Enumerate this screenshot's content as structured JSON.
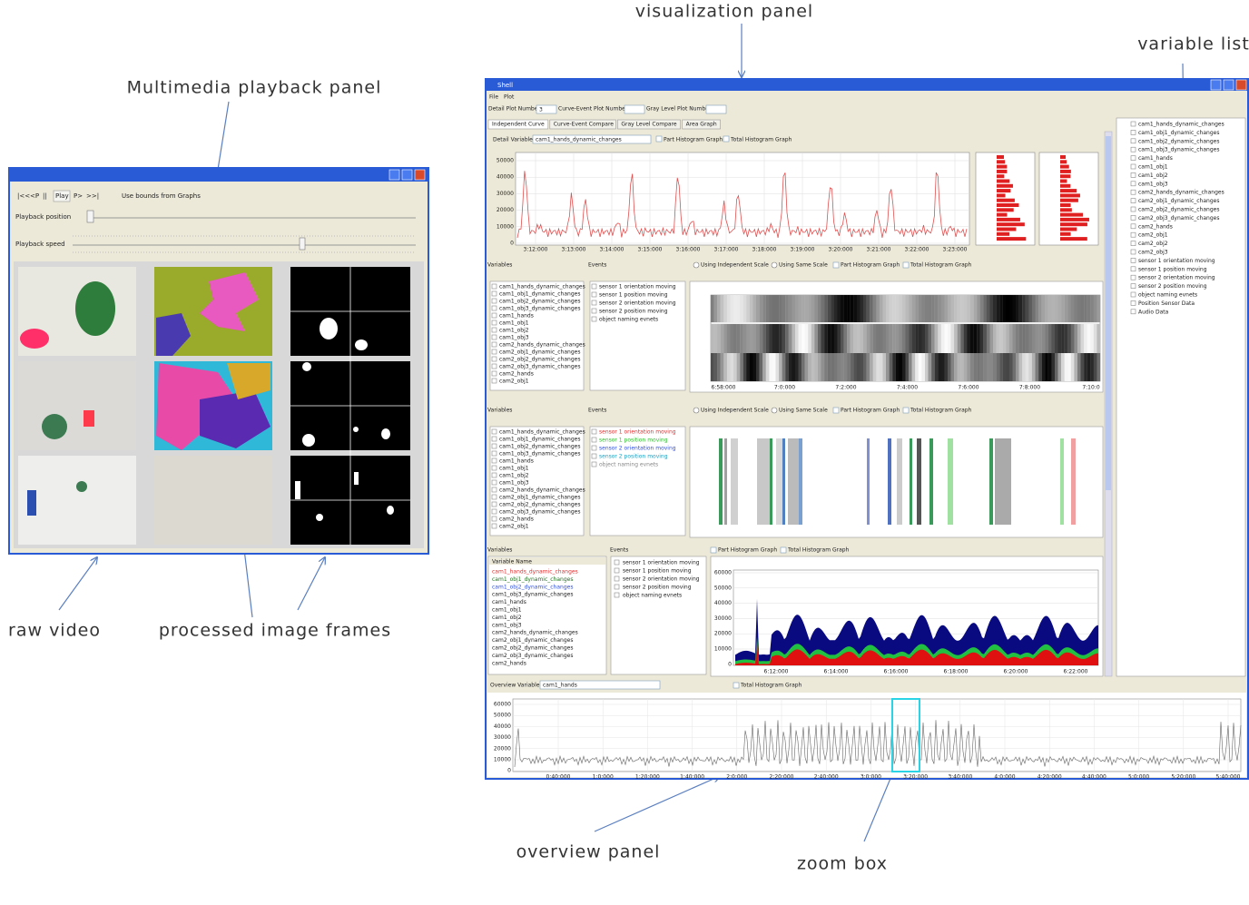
{
  "annotations": {
    "visualization": "visualization panel",
    "variable_list": "variable list",
    "multimedia": "Multimedia playback panel",
    "raw_video": "raw video",
    "processed": "processed image frames",
    "overview": "overview panel",
    "zoom": "zoom  box"
  },
  "playback": {
    "controls": [
      "|<<",
      "<P",
      "||",
      "Play",
      "P>",
      ">>|"
    ],
    "bounds": "Use bounds from Graphs",
    "position_label": "Playback position",
    "speed_label": "Playback speed"
  },
  "shell": {
    "title": "Shell",
    "menu": [
      "File",
      "Plot"
    ],
    "toolbar": {
      "detail": "Detail Plot Number",
      "detail_value": "3",
      "curve_event": "Curve-Event Plot Number",
      "gray": "Gray Level Plot Number"
    },
    "tabs": [
      "Independent Curve",
      "Curve-Event Compare",
      "Gray Level Compare",
      "Area Graph"
    ],
    "detail": {
      "label": "Detail Variable",
      "variable": "cam1_hands_dynamic_changes",
      "part": "Part Histogram Graph",
      "total": "Total Histogram Graph",
      "yticks": [
        50000,
        40000,
        30000,
        20000,
        10000,
        0
      ],
      "xticks": [
        "3:12:000",
        "3:13:000",
        "3:14:000",
        "3:15:000",
        "3:16:000",
        "3:17:000",
        "3:18:000",
        "3:19:000",
        "3:20:000",
        "3:21:000",
        "3:22:000",
        "3:23:000"
      ]
    },
    "variables_label": "Variables",
    "events_label": "Events",
    "independent_scale": "Using Independent Scale",
    "same_scale": "Using Same Scale",
    "part": "Part Histogram Graph",
    "total": "Total Histogram Graph",
    "variables": [
      "cam1_hands_dynamic_changes",
      "cam1_obj1_dynamic_changes",
      "cam1_obj2_dynamic_changes",
      "cam1_obj3_dynamic_changes",
      "cam1_hands",
      "cam1_obj1",
      "cam1_obj2",
      "cam1_obj3",
      "cam2_hands_dynamic_changes",
      "cam2_obj1_dynamic_changes",
      "cam2_obj2_dynamic_changes",
      "cam2_obj3_dynamic_changes",
      "cam2_hands",
      "cam2_obj1",
      "cam2_obj2",
      "cam2_obj3"
    ],
    "events": [
      "sensor 1 orientation moving",
      "sensor 1 position moving",
      "sensor 2 orientation moving",
      "sensor 2 position moving",
      "object naming evnets"
    ],
    "gray_xticks": [
      "6:58:000",
      "7:0:000",
      "7:2:000",
      "7:4:000",
      "7:6:000",
      "7:8:000",
      "7:10:0"
    ],
    "variable_name": "Variable Name",
    "area": {
      "yticks": [
        60000,
        50000,
        40000,
        30000,
        20000,
        10000,
        0
      ],
      "xticks": [
        "6:12:000",
        "6:14:000",
        "6:16:000",
        "6:18:000",
        "6:20:000",
        "6:22:000"
      ]
    },
    "overview": {
      "label": "Overview Variable",
      "variable": "cam1_hands",
      "total": "Total Histogram Graph",
      "yticks": [
        60000,
        50000,
        40000,
        30000,
        20000,
        10000,
        0
      ],
      "xticks": [
        "0:40:000",
        "1:0:000",
        "1:20:000",
        "1:40:000",
        "2:0:000",
        "2:20:000",
        "2:40:000",
        "3:0:000",
        "3:20:000",
        "3:40:000",
        "4:0:000",
        "4:20:000",
        "4:40:000",
        "5:0:000",
        "5:20:000",
        "5:40:000"
      ]
    },
    "variable_list": [
      "cam1_hands_dynamic_changes",
      "cam1_obj1_dynamic_changes",
      "cam1_obj2_dynamic_changes",
      "cam1_obj3_dynamic_changes",
      "cam1_hands",
      "cam1_obj1",
      "cam1_obj2",
      "cam1_obj3",
      "cam2_hands_dynamic_changes",
      "cam2_obj1_dynamic_changes",
      "cam2_obj2_dynamic_changes",
      "cam2_obj3_dynamic_changes",
      "cam2_hands",
      "cam2_obj1",
      "cam2_obj2",
      "cam2_obj3",
      "sensor 1 orientation moving",
      "sensor 1 position moving",
      "sensor 2 orientation moving",
      "sensor 2 position moving",
      "object naming evnets",
      "Position Sensor Data",
      "Audio Data"
    ]
  }
}
